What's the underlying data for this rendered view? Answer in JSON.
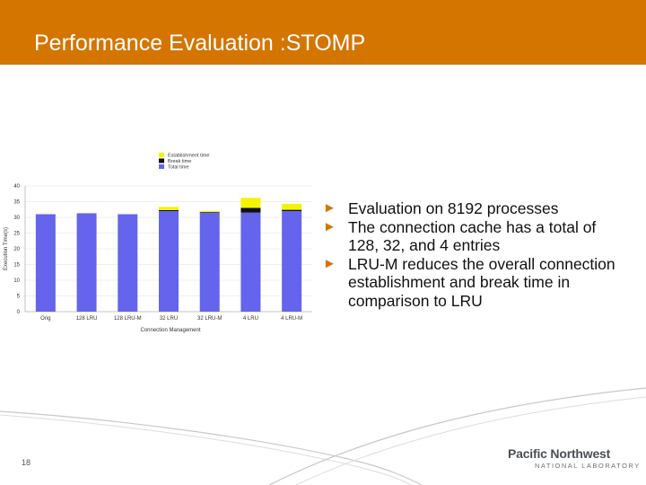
{
  "slide": {
    "title": "Performance Evaluation :STOMP",
    "page_number": "18",
    "accent_color": "#d47500"
  },
  "bullets": [
    "Evaluation on 8192 processes",
    "The connection cache has a total of 128, 32, and 4 entries",
    "LRU-M reduces the overall connection establishment and break time in comparison to LRU"
  ],
  "logo": {
    "line1": "Pacific Northwest",
    "line2": "NATIONAL LABORATORY"
  },
  "chart_data": {
    "type": "bar",
    "stacked": true,
    "categories": [
      "Orig",
      "128 LRU",
      "128 LRU-M",
      "32 LRU",
      "32 LRU-M",
      "4 LRU",
      "4 LRU-M"
    ],
    "series": [
      {
        "name": "Total time",
        "color": "#6464ec",
        "values": [
          31,
          31.3,
          31,
          32,
          31.5,
          31.5,
          32
        ]
      },
      {
        "name": "Break time",
        "color": "#111111",
        "values": [
          0,
          0,
          0,
          0.3,
          0.2,
          1.5,
          0.4
        ]
      },
      {
        "name": "Establishment time",
        "color": "#f4f400",
        "values": [
          0,
          0,
          0,
          1,
          0.3,
          3.2,
          1.9
        ]
      }
    ],
    "ylabel": "Execution Time(s)",
    "xlabel": "Connection Management",
    "ylim": [
      0,
      40
    ],
    "yticks": [
      0,
      5,
      10,
      15,
      20,
      25,
      30,
      35,
      40
    ],
    "grid": true,
    "legend_position": "top-left"
  }
}
